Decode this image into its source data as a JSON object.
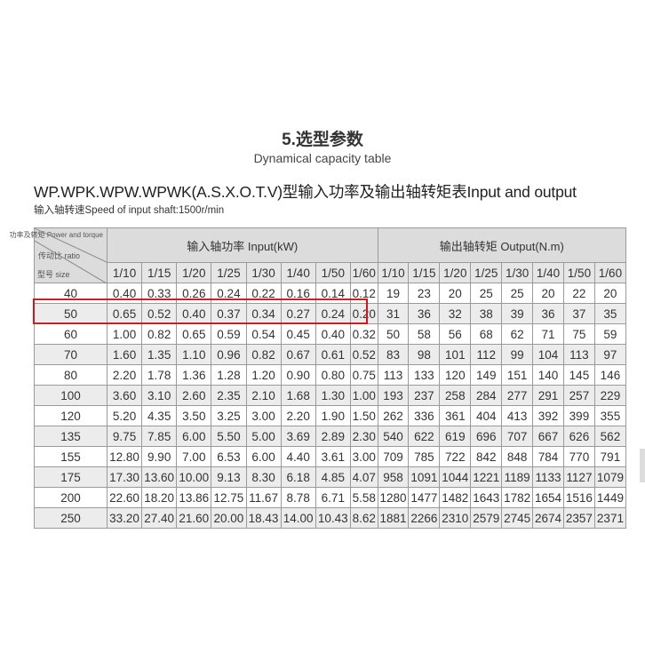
{
  "title": "5.选型参数",
  "subtitle": "Dynamical capacity table",
  "heading": "WP.WPK.WPW.WPWK(A.S.X.O.T.V)型输入功率及输出轴转矩表Input and output",
  "speed_note": "输入轴转速Speed of input shaft:1500r/min",
  "table": {
    "corner": {
      "top": "功率及转矩 Power and torque",
      "middle": "传动比 ratio",
      "bottom": "型号 size"
    },
    "input_group": "输入轴功率  Input(kW)",
    "output_group": "输出轴转矩  Output(N.m)",
    "ratios": [
      "1/10",
      "1/15",
      "1/20",
      "1/25",
      "1/30",
      "1/40",
      "1/50",
      "1/60"
    ],
    "highlighted_size": "50",
    "highlight_color": "#d8141b",
    "rows": [
      {
        "size": "40",
        "input": [
          "0.40",
          "0.33",
          "0.26",
          "0.24",
          "0.22",
          "0.16",
          "0.14",
          "0.12"
        ],
        "output": [
          "19",
          "23",
          "20",
          "25",
          "25",
          "20",
          "22",
          "20"
        ]
      },
      {
        "size": "50",
        "input": [
          "0.65",
          "0.52",
          "0.40",
          "0.37",
          "0.34",
          "0.27",
          "0.24",
          "0.20"
        ],
        "output": [
          "31",
          "36",
          "32",
          "38",
          "39",
          "36",
          "37",
          "35"
        ]
      },
      {
        "size": "60",
        "input": [
          "1.00",
          "0.82",
          "0.65",
          "0.59",
          "0.54",
          "0.45",
          "0.40",
          "0.32"
        ],
        "output": [
          "50",
          "58",
          "56",
          "68",
          "62",
          "71",
          "75",
          "59"
        ]
      },
      {
        "size": "70",
        "input": [
          "1.60",
          "1.35",
          "1.10",
          "0.96",
          "0.82",
          "0.67",
          "0.61",
          "0.52"
        ],
        "output": [
          "83",
          "98",
          "101",
          "112",
          "99",
          "104",
          "113",
          "97"
        ]
      },
      {
        "size": "80",
        "input": [
          "2.20",
          "1.78",
          "1.36",
          "1.28",
          "1.20",
          "0.90",
          "0.80",
          "0.75"
        ],
        "output": [
          "113",
          "133",
          "120",
          "149",
          "151",
          "140",
          "145",
          "146"
        ]
      },
      {
        "size": "100",
        "input": [
          "3.60",
          "3.10",
          "2.60",
          "2.35",
          "2.10",
          "1.68",
          "1.30",
          "1.00"
        ],
        "output": [
          "193",
          "237",
          "258",
          "284",
          "277",
          "291",
          "257",
          "229"
        ]
      },
      {
        "size": "120",
        "input": [
          "5.20",
          "4.35",
          "3.50",
          "3.25",
          "3.00",
          "2.20",
          "1.90",
          "1.50"
        ],
        "output": [
          "262",
          "336",
          "361",
          "404",
          "413",
          "392",
          "399",
          "355"
        ]
      },
      {
        "size": "135",
        "input": [
          "9.75",
          "7.85",
          "6.00",
          "5.50",
          "5.00",
          "3.69",
          "2.89",
          "2.30"
        ],
        "output": [
          "540",
          "622",
          "619",
          "696",
          "707",
          "667",
          "626",
          "562"
        ]
      },
      {
        "size": "155",
        "input": [
          "12.80",
          "9.90",
          "7.00",
          "6.53",
          "6.00",
          "4.40",
          "3.61",
          "3.00"
        ],
        "output": [
          "709",
          "785",
          "722",
          "842",
          "848",
          "784",
          "770",
          "791"
        ]
      },
      {
        "size": "175",
        "input": [
          "17.30",
          "13.60",
          "10.00",
          "9.13",
          "8.30",
          "6.18",
          "4.85",
          "4.07"
        ],
        "output": [
          "958",
          "1091",
          "1044",
          "1221",
          "1189",
          "1133",
          "1127",
          "1079"
        ]
      },
      {
        "size": "200",
        "input": [
          "22.60",
          "18.20",
          "13.86",
          "12.75",
          "11.67",
          "8.78",
          "6.71",
          "5.58"
        ],
        "output": [
          "1280",
          "1477",
          "1482",
          "1643",
          "1782",
          "1654",
          "1516",
          "1449"
        ]
      },
      {
        "size": "250",
        "input": [
          "33.20",
          "27.40",
          "21.60",
          "20.00",
          "18.43",
          "14.00",
          "10.43",
          "8.62"
        ],
        "output": [
          "1881",
          "2266",
          "2310",
          "2579",
          "2745",
          "2674",
          "2357",
          "2371"
        ]
      }
    ]
  }
}
